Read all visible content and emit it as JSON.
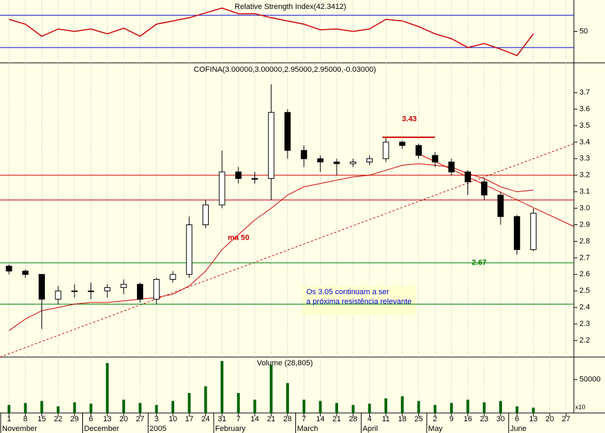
{
  "chart_data": [
    {
      "type": "line",
      "title": "Relative Strength Index(42.3412)",
      "color": "#cc0000",
      "values": [
        65,
        59,
        44,
        53,
        50,
        53,
        47,
        54,
        44,
        59,
        63,
        67,
        73,
        79,
        72,
        72,
        67,
        63,
        59,
        52,
        53,
        50,
        53,
        65,
        63,
        56,
        47,
        41,
        30,
        35,
        28,
        20,
        47,
        null,
        null
      ],
      "ylim": [
        11,
        89
      ],
      "yticks": [
        50
      ],
      "reference_lines": [
        30,
        70
      ],
      "reference_color": "#0000cc"
    },
    {
      "type": "candlestick",
      "title": "COFINA(3.00000,3.00000,2.95000,2.95000,-0.03000)",
      "open": [
        2.65,
        2.62,
        2.6,
        2.45,
        2.5,
        2.5,
        2.5,
        2.52,
        2.54,
        2.45,
        2.57,
        2.6,
        2.9,
        3.02,
        3.22,
        3.18,
        3.18,
        3.58,
        3.35,
        3.3,
        3.28,
        3.27,
        3.28,
        3.3,
        3.4,
        3.38,
        3.32,
        3.28,
        3.22,
        3.16,
        3.08,
        2.95,
        2.75,
        null,
        null
      ],
      "high": [
        2.66,
        2.63,
        2.6,
        2.53,
        2.54,
        2.55,
        2.54,
        2.57,
        2.55,
        2.58,
        2.62,
        2.95,
        3.05,
        3.35,
        3.25,
        3.22,
        3.75,
        3.6,
        3.38,
        3.32,
        3.3,
        3.3,
        3.32,
        3.43,
        3.41,
        3.39,
        3.34,
        3.3,
        3.23,
        3.18,
        3.1,
        2.96,
        3.0,
        null,
        null
      ],
      "low": [
        2.6,
        2.58,
        2.27,
        2.42,
        2.46,
        2.45,
        2.46,
        2.48,
        2.43,
        2.42,
        2.55,
        2.58,
        2.88,
        3.0,
        3.15,
        3.15,
        3.05,
        3.3,
        3.25,
        3.22,
        3.2,
        3.25,
        3.26,
        3.28,
        3.36,
        3.3,
        3.25,
        3.2,
        3.08,
        3.05,
        2.9,
        2.72,
        2.74,
        null,
        null
      ],
      "close": [
        2.62,
        2.6,
        2.45,
        2.5,
        2.5,
        2.5,
        2.52,
        2.54,
        2.45,
        2.57,
        2.6,
        2.9,
        3.02,
        3.22,
        3.18,
        3.18,
        3.58,
        3.35,
        3.3,
        3.28,
        3.27,
        3.28,
        3.3,
        3.4,
        3.38,
        3.32,
        3.28,
        3.22,
        3.16,
        3.08,
        2.95,
        2.75,
        2.97,
        null,
        null
      ],
      "overlay": {
        "name": "ma 50",
        "color": "#cc0000",
        "values": [
          2.26,
          2.33,
          2.38,
          2.4,
          2.42,
          2.43,
          2.43,
          2.44,
          2.45,
          2.46,
          2.48,
          2.53,
          2.62,
          2.75,
          2.84,
          2.93,
          3.0,
          3.08,
          3.13,
          3.15,
          3.17,
          3.19,
          3.2,
          3.23,
          3.26,
          3.27,
          3.26,
          3.25,
          3.21,
          3.18,
          3.13,
          3.1,
          3.11,
          null,
          null
        ]
      },
      "hlines": [
        {
          "value": 3.2,
          "color": "#cc0000"
        },
        {
          "value": 3.05,
          "color": "#cc0000"
        },
        {
          "value": 2.67,
          "color": "#008000"
        },
        {
          "value": 2.42,
          "color": "#008000"
        }
      ],
      "annotations": [
        {
          "text": "3.43",
          "value": 3.43,
          "color": "#cc0000"
        },
        {
          "text": "2.67",
          "value": 2.67,
          "color": "#008000"
        },
        {
          "text": "ma 50",
          "value": 2.82,
          "color": "#cc0000"
        }
      ],
      "note": [
        "Os 3.05  continuam a ser",
        "a próxima resistência relevante"
      ],
      "ylim": [
        2.1,
        3.88
      ],
      "yticks": [
        3.7,
        3.6,
        3.5,
        3.4,
        3.3,
        3.2,
        3.1,
        {
          "value": 3,
          "label": "3.0"
        },
        2.9,
        2.8,
        2.7,
        2.6,
        2.5,
        2.4,
        2.3,
        2.2
      ]
    },
    {
      "type": "bar",
      "title": "Volume (28,805)",
      "color": "#006600",
      "categories": [
        "1",
        "8",
        "15",
        "22",
        "29",
        "6",
        "13",
        "20",
        "27",
        "3",
        "10",
        "17",
        "24",
        "31",
        "7",
        "14",
        "21",
        "28",
        "7",
        "14",
        "21",
        "28",
        "4",
        "11",
        "18",
        "25",
        "2",
        "9",
        "16",
        "23",
        "30",
        "6",
        "13",
        "20",
        "27"
      ],
      "month_labels": [
        "November",
        null,
        null,
        null,
        null,
        "December",
        null,
        null,
        null,
        "2005",
        null,
        null,
        null,
        "February",
        null,
        null,
        null,
        null,
        "March",
        null,
        null,
        null,
        "April",
        null,
        null,
        null,
        "May",
        null,
        null,
        null,
        null,
        "June",
        null,
        null,
        null
      ],
      "values": [
        12000,
        15000,
        18000,
        10000,
        16000,
        14000,
        75000,
        20000,
        15000,
        12000,
        18000,
        30000,
        40000,
        78000,
        30000,
        20000,
        72000,
        45000,
        20000,
        18000,
        15000,
        12000,
        14000,
        22000,
        25000,
        18000,
        12000,
        15000,
        20000,
        16000,
        18000,
        10000,
        8000,
        null,
        null
      ],
      "ylim": [
        0,
        84000
      ],
      "yticks": [
        50000
      ],
      "scale_note": "x10"
    }
  ]
}
